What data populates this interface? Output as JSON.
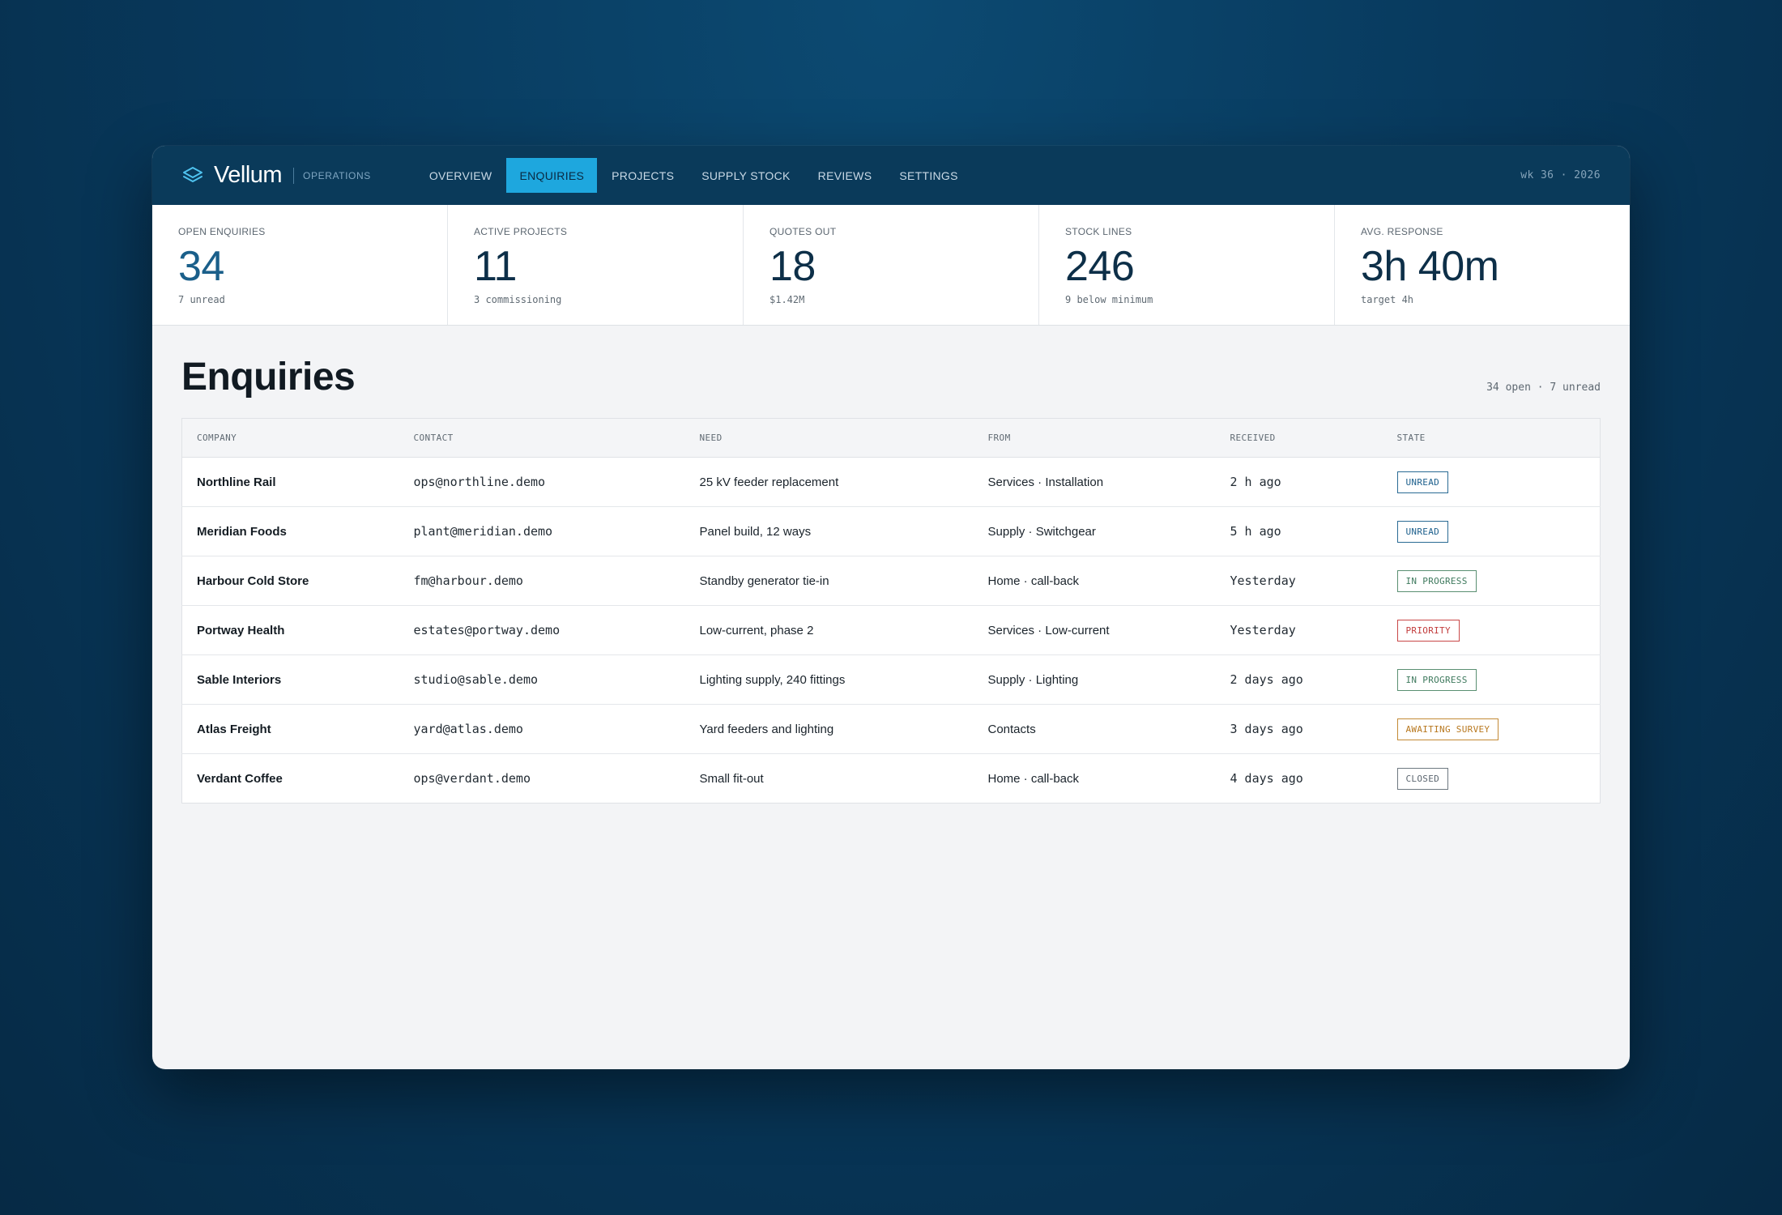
{
  "app": {
    "name": "Vellum",
    "section": "OPERATIONS",
    "week": "wk 36 · 2026"
  },
  "nav": {
    "items": [
      {
        "label": "OVERVIEW",
        "active": false
      },
      {
        "label": "ENQUIRIES",
        "active": true
      },
      {
        "label": "PROJECTS",
        "active": false
      },
      {
        "label": "SUPPLY STOCK",
        "active": false
      },
      {
        "label": "REVIEWS",
        "active": false
      },
      {
        "label": "SETTINGS",
        "active": false
      }
    ]
  },
  "kpis": [
    {
      "label": "OPEN ENQUIRIES",
      "value": "34",
      "sub": "7 unread"
    },
    {
      "label": "ACTIVE PROJECTS",
      "value": "11",
      "sub": "3 commissioning"
    },
    {
      "label": "QUOTES OUT",
      "value": "18",
      "sub": "$1.42M"
    },
    {
      "label": "STOCK LINES",
      "value": "246",
      "sub": "9 below minimum"
    },
    {
      "label": "AVG. RESPONSE",
      "value": "3h 40m",
      "sub": "target 4h"
    }
  ],
  "page": {
    "title": "Enquiries",
    "meta": "34 open · 7 unread"
  },
  "table": {
    "columns": [
      "COMPANY",
      "CONTACT",
      "NEED",
      "FROM",
      "RECEIVED",
      "STATE"
    ],
    "rows": [
      {
        "company": "Northline Rail",
        "contact": "ops@northline.demo",
        "need": "25 kV feeder replacement",
        "from": "Services · Installation",
        "received": "2 h ago",
        "state": "UNREAD"
      },
      {
        "company": "Meridian Foods",
        "contact": "plant@meridian.demo",
        "need": "Panel build, 12 ways",
        "from": "Supply · Switchgear",
        "received": "5 h ago",
        "state": "UNREAD"
      },
      {
        "company": "Harbour Cold Store",
        "contact": "fm@harbour.demo",
        "need": "Standby generator tie-in",
        "from": "Home · call-back",
        "received": "Yesterday",
        "state": "IN PROGRESS"
      },
      {
        "company": "Portway Health",
        "contact": "estates@portway.demo",
        "need": "Low-current, phase 2",
        "from": "Services · Low-current",
        "received": "Yesterday",
        "state": "PRIORITY"
      },
      {
        "company": "Sable Interiors",
        "contact": "studio@sable.demo",
        "need": "Lighting supply, 240 fittings",
        "from": "Supply · Lighting",
        "received": "2 days ago",
        "state": "IN PROGRESS"
      },
      {
        "company": "Atlas Freight",
        "contact": "yard@atlas.demo",
        "need": "Yard feeders and lighting",
        "from": "Contacts",
        "received": "3 days ago",
        "state": "AWAITING SURVEY"
      },
      {
        "company": "Verdant Coffee",
        "contact": "ops@verdant.demo",
        "need": "Small fit-out",
        "from": "Home · call-back",
        "received": "4 days ago",
        "state": "CLOSED"
      }
    ]
  },
  "colors": {
    "topbar": "#0a3a5a",
    "nav_active": "#1ea7de",
    "unread": "#1c5f8c",
    "in_progress": "#3f7a5e",
    "priority": "#c23c3c",
    "awaiting_survey": "#b8781f",
    "closed": "#5c6670"
  },
  "icons": {
    "brand": "layers-icon"
  }
}
